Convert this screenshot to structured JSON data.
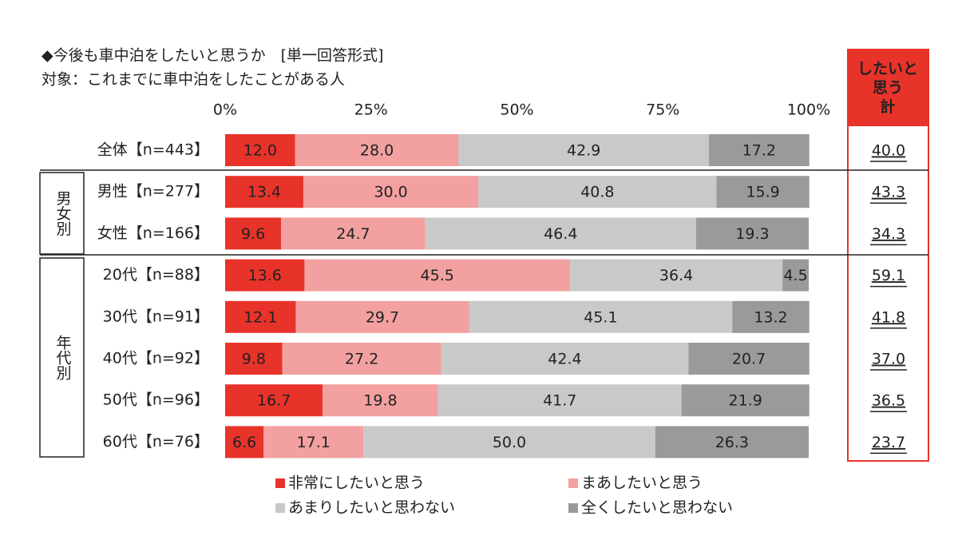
{
  "chart_data": {
    "type": "stacked-bar-horizontal",
    "title": "◆今後も車中泊をしたいと思うか　[単一回答形式]",
    "subtitle": "対象：これまでに車中泊をしたことがある人",
    "categories": [
      "全体【n=443】",
      "男性【n=277】",
      "女性【n=166】",
      "20代【n=88】",
      "30代【n=91】",
      "40代【n=92】",
      "50代【n=96】",
      "60代【n=76】"
    ],
    "groups": [
      "男女別",
      "年代別"
    ],
    "xlim": [
      0,
      100
    ],
    "xticks": [
      {
        "value": 0,
        "label": "0%"
      },
      {
        "value": 25,
        "label": "25%"
      },
      {
        "value": 50,
        "label": "50%"
      },
      {
        "value": 75,
        "label": "75%"
      },
      {
        "value": 100,
        "label": "100%"
      }
    ],
    "legend": "bottom",
    "series": [
      {
        "name": "非常にしたいと思う",
        "color": "#e8332a",
        "values": [
          12.0,
          13.4,
          9.6,
          13.6,
          12.1,
          9.8,
          16.7,
          6.6
        ],
        "value_labels": [
          "12.0",
          "13.4",
          "9.6",
          "13.6",
          "12.1",
          "9.8",
          "16.7",
          "6.6"
        ]
      },
      {
        "name": "まあしたいと思う",
        "color": "#f2a0a0",
        "values": [
          28.0,
          30.0,
          24.7,
          45.5,
          29.7,
          27.2,
          19.8,
          17.1
        ],
        "value_labels": [
          "28.0",
          "30.0",
          "24.7",
          "45.5",
          "29.7",
          "27.2",
          "19.8",
          "17.1"
        ]
      },
      {
        "name": "あまりしたいと思わない",
        "color": "#c9c9c9",
        "values": [
          42.9,
          40.8,
          46.4,
          36.4,
          45.1,
          42.4,
          41.7,
          50.0
        ],
        "value_labels": [
          "42.9",
          "40.8",
          "46.4",
          "36.4",
          "45.1",
          "42.4",
          "41.7",
          "50.0"
        ]
      },
      {
        "name": "全くしたいと思わない",
        "color": "#9a9a9a",
        "values": [
          17.2,
          15.9,
          19.3,
          4.5,
          13.2,
          20.7,
          21.9,
          26.3
        ],
        "value_labels": [
          "17.2",
          "15.9",
          "19.3",
          "4.5",
          "13.2",
          "20.7",
          "21.9",
          "26.3"
        ]
      }
    ],
    "totals": {
      "label": "したいと思う計",
      "values": [
        40.0,
        43.3,
        34.3,
        59.1,
        41.8,
        37.0,
        36.5,
        23.7
      ],
      "value_labels": [
        "40.0",
        "43.3",
        "34.3",
        "59.1",
        "41.8",
        "37.0",
        "36.5",
        "23.7"
      ]
    }
  }
}
